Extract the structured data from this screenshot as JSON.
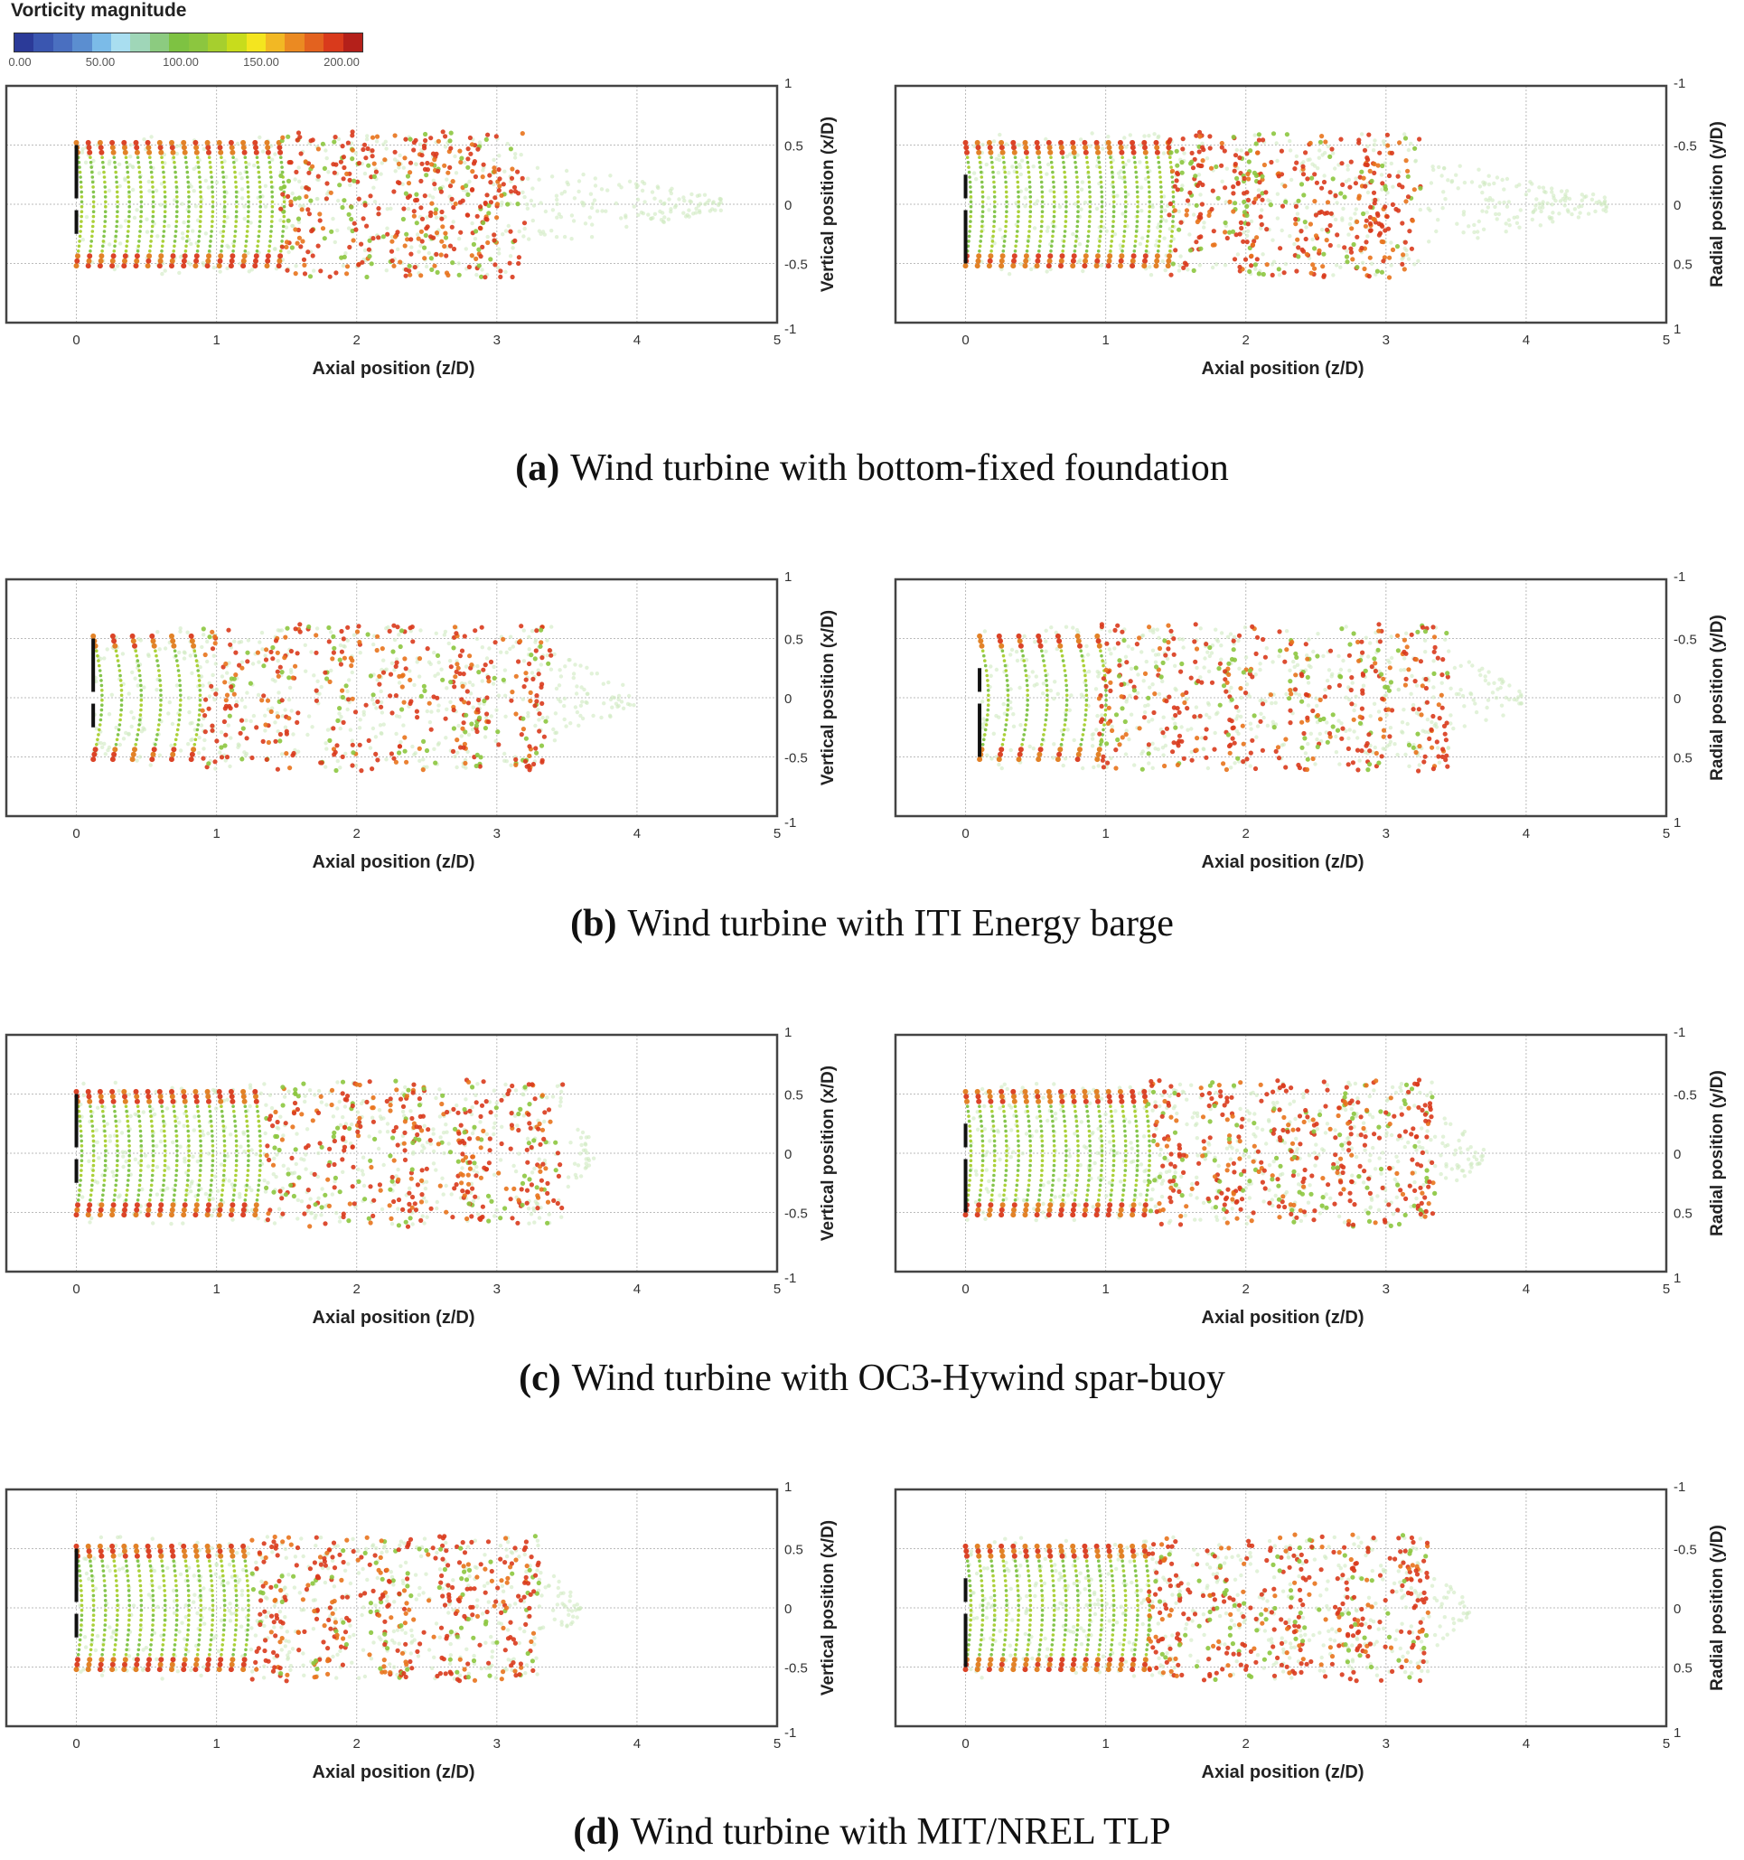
{
  "colorbar": {
    "title": "Vorticity magnitude",
    "range": [
      0,
      200
    ],
    "tick_labels": [
      "0.00",
      "50.00",
      "100.00",
      "150.00",
      "200.00"
    ],
    "colors": [
      "#2b3a98",
      "#3a56b0",
      "#4a6fc0",
      "#5b8ed0",
      "#7bbbe8",
      "#a9def0",
      "#9fd6b8",
      "#8ccb80",
      "#7ec242",
      "#8cc63f",
      "#a6cf2e",
      "#c8dc1c",
      "#f4e51f",
      "#f2b824",
      "#eb8a22",
      "#e3621f",
      "#d93a1c",
      "#b4201a"
    ]
  },
  "chart_data": [
    {
      "id": "a-left",
      "type": "scatter",
      "xlabel": "Axial position (z/D)",
      "ylabel": "Vertical position (x/D)",
      "xlim": [
        -0.5,
        5
      ],
      "ylim": [
        -1,
        1
      ],
      "y_inverted": false,
      "xticks": [
        "0",
        "1",
        "2",
        "3",
        "4",
        "5"
      ],
      "yticks": [
        "1",
        "0.5",
        "0",
        "-0.5",
        "-1"
      ],
      "grid": true
    },
    {
      "id": "a-right",
      "type": "scatter",
      "xlabel": "Axial position (z/D)",
      "ylabel": "Radial position (y/D)",
      "xlim": [
        -0.5,
        5
      ],
      "ylim": [
        -1,
        1
      ],
      "y_inverted": true,
      "xticks": [
        "0",
        "1",
        "2",
        "3",
        "4",
        "5"
      ],
      "yticks": [
        "-1",
        "-0.5",
        "0",
        "0.5",
        "1"
      ],
      "grid": true
    },
    {
      "id": "b-left",
      "type": "scatter",
      "xlabel": "Axial position (z/D)",
      "ylabel": "Vertical position (x/D)",
      "xlim": [
        -0.5,
        5
      ],
      "ylim": [
        -1,
        1
      ],
      "y_inverted": false,
      "xticks": [
        "0",
        "1",
        "2",
        "3",
        "4",
        "5"
      ],
      "yticks": [
        "1",
        "0.5",
        "0",
        "-0.5",
        "-1"
      ],
      "grid": true
    },
    {
      "id": "b-right",
      "type": "scatter",
      "xlabel": "Axial position (z/D)",
      "ylabel": "Radial position (y/D)",
      "xlim": [
        -0.5,
        5
      ],
      "ylim": [
        -1,
        1
      ],
      "y_inverted": true,
      "xticks": [
        "0",
        "1",
        "2",
        "3",
        "4",
        "5"
      ],
      "yticks": [
        "-1",
        "-0.5",
        "0",
        "0.5",
        "1"
      ],
      "grid": true
    },
    {
      "id": "c-left",
      "type": "scatter",
      "xlabel": "Axial position (z/D)",
      "ylabel": "Vertical position (x/D)",
      "xlim": [
        -0.5,
        5
      ],
      "ylim": [
        -1,
        1
      ],
      "y_inverted": false,
      "xticks": [
        "0",
        "1",
        "2",
        "3",
        "4",
        "5"
      ],
      "yticks": [
        "1",
        "0.5",
        "0",
        "-0.5",
        "-1"
      ],
      "grid": true
    },
    {
      "id": "c-right",
      "type": "scatter",
      "xlabel": "Axial position (z/D)",
      "ylabel": "Radial position (y/D)",
      "xlim": [
        -0.5,
        5
      ],
      "ylim": [
        -1,
        1
      ],
      "y_inverted": true,
      "xticks": [
        "0",
        "1",
        "2",
        "3",
        "4",
        "5"
      ],
      "yticks": [
        "-1",
        "-0.5",
        "0",
        "0.5",
        "1"
      ],
      "grid": true
    },
    {
      "id": "d-left",
      "type": "scatter",
      "xlabel": "Axial position (z/D)",
      "ylabel": "Vertical position (x/D)",
      "xlim": [
        -0.5,
        5
      ],
      "ylim": [
        -1,
        1
      ],
      "y_inverted": false,
      "xticks": [
        "0",
        "1",
        "2",
        "3",
        "4",
        "5"
      ],
      "yticks": [
        "1",
        "0.5",
        "0",
        "-0.5",
        "-1"
      ],
      "grid": true
    },
    {
      "id": "d-right",
      "type": "scatter",
      "xlabel": "Axial position (z/D)",
      "ylabel": "Radial position (y/D)",
      "xlim": [
        -0.5,
        5
      ],
      "ylim": [
        -1,
        1
      ],
      "y_inverted": true,
      "xticks": [
        "0",
        "1",
        "2",
        "3",
        "4",
        "5"
      ],
      "yticks": [
        "-1",
        "-0.5",
        "0",
        "0.5",
        "1"
      ],
      "grid": true
    }
  ],
  "captions": [
    {
      "letter": "(a)",
      "text": "Wind turbine with bottom-fixed foundation"
    },
    {
      "letter": "(b)",
      "text": "Wind turbine with ITI Energy barge"
    },
    {
      "letter": "(c)",
      "text": "Wind turbine with OC3-Hywind spar-buoy"
    },
    {
      "letter": "(d)",
      "text": "Wind turbine with MIT/NREL TLP"
    }
  ]
}
